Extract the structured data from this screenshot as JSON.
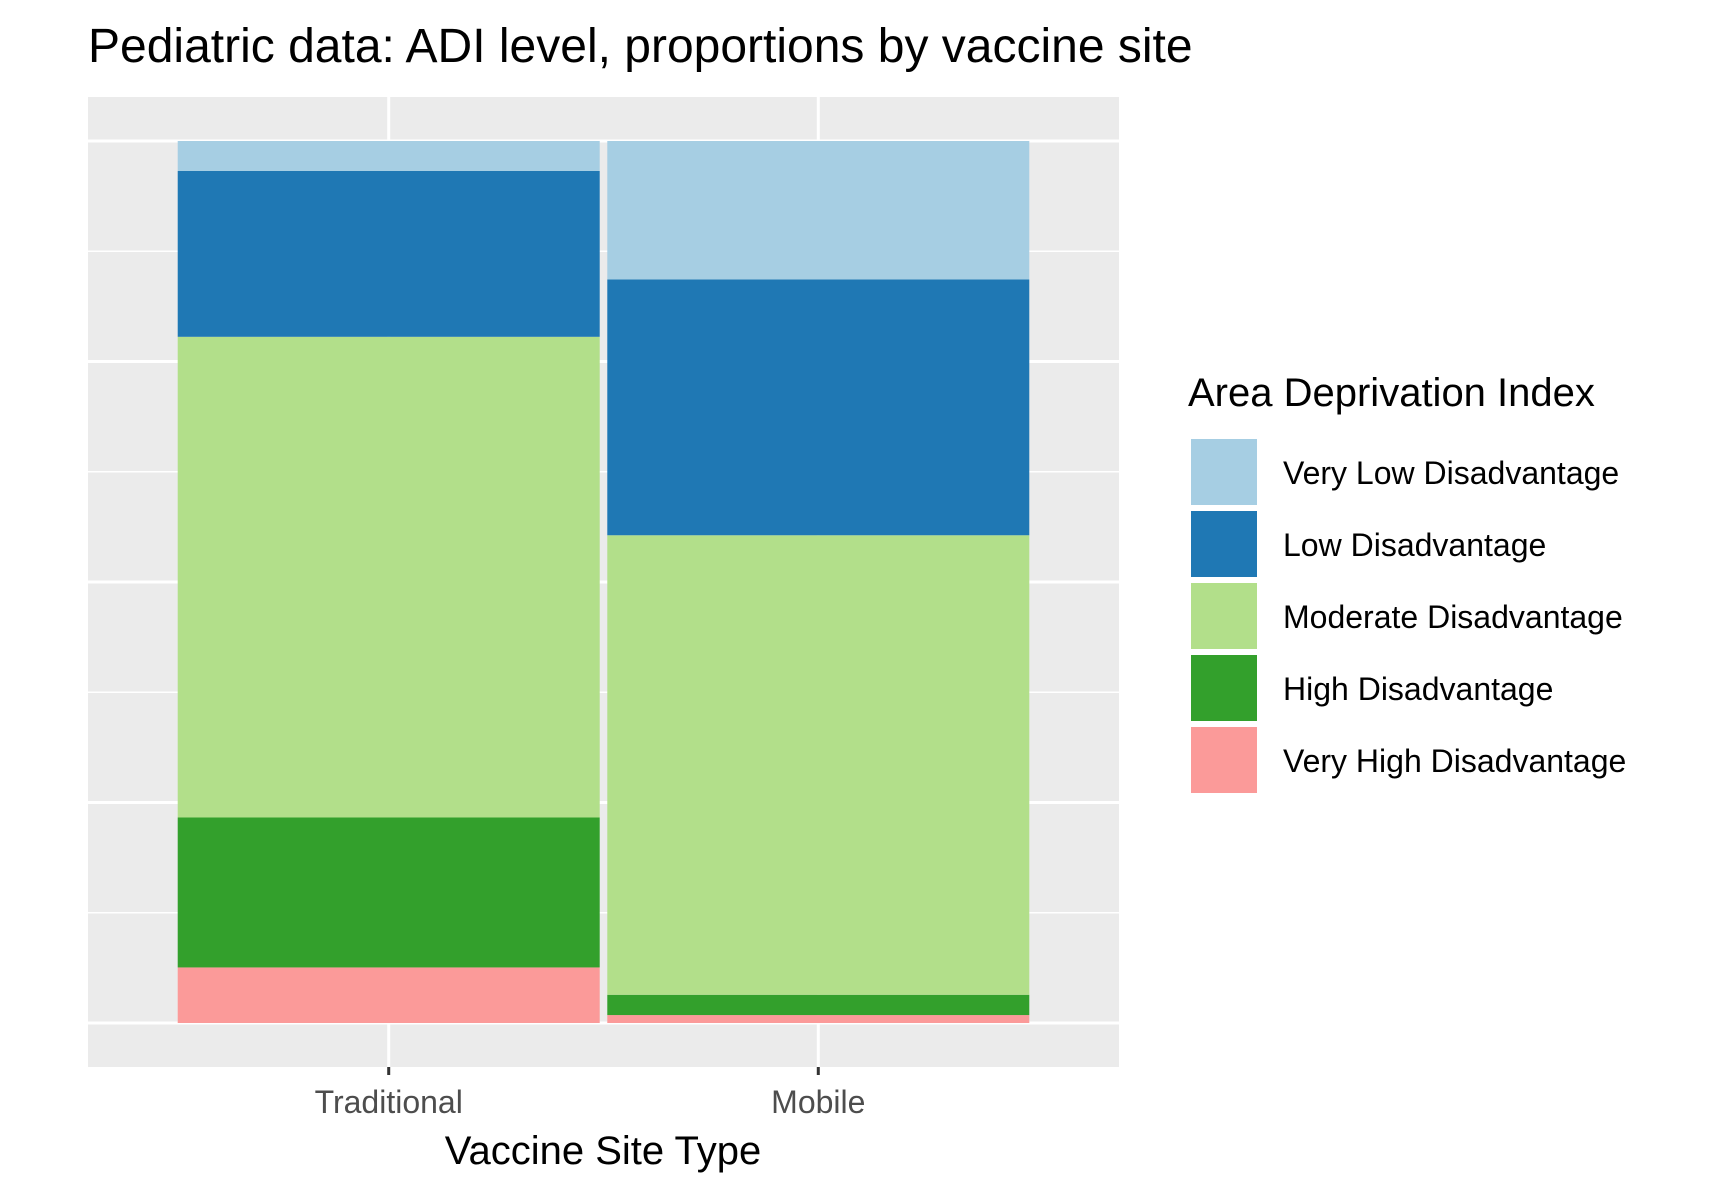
{
  "chart_data": {
    "type": "bar",
    "stacked": true,
    "title": "Pediatric data: ADI level, proportions by vaccine site",
    "xlabel": "Vaccine Site Type",
    "ylabel": "",
    "ylim": [
      0,
      1
    ],
    "grid": true,
    "legend_position": "right",
    "legend_title": "Area Deprivation Index",
    "categories": [
      "Traditional",
      "Mobile"
    ],
    "series": [
      {
        "name": "Very Low Disadvantage",
        "color": "#a6cee3",
        "values": [
          0.034,
          0.157
        ]
      },
      {
        "name": "Low Disadvantage",
        "color": "#1f78b4",
        "values": [
          0.188,
          0.29
        ]
      },
      {
        "name": "Moderate Disadvantage",
        "color": "#b2df8a",
        "values": [
          0.545,
          0.521
        ]
      },
      {
        "name": "High Disadvantage",
        "color": "#33a02c",
        "values": [
          0.17,
          0.023
        ]
      },
      {
        "name": "Very High Disadvantage",
        "color": "#fb9a99",
        "values": [
          0.063,
          0.009
        ]
      }
    ]
  }
}
